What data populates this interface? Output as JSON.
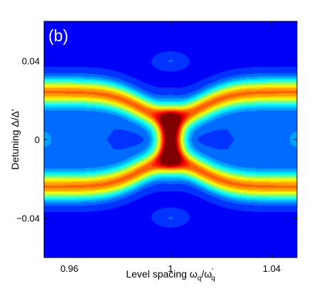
{
  "chart_data": {
    "type": "heatmap",
    "panel_label": "(b)",
    "xlabel": {
      "main": "Level spacing ω",
      "sub1": "q",
      "mid": "/ω",
      "sup": "'",
      "sub2": "q"
    },
    "ylabel": "Detuning Δ/Δ'",
    "xlim": [
      0.95,
      1.05
    ],
    "ylim": [
      -0.06,
      0.06
    ],
    "x_ticks": [
      {
        "value": 0.96,
        "label": "0.96"
      },
      {
        "value": 1.0,
        "label": "1"
      },
      {
        "value": 1.04,
        "label": "1.04"
      }
    ],
    "y_ticks": [
      {
        "value": 0.04,
        "label": "0.04"
      },
      {
        "value": 0.0,
        "label": "0"
      },
      {
        "value": -0.04,
        "label": "−0.04"
      }
    ],
    "colormap": "jet",
    "grid": false,
    "background_color": "#0a1eff",
    "features": {
      "resonance_center": [
        1.0,
        0.0
      ],
      "peak_level": 1.0,
      "branch_detuning_far": 0.024,
      "branch_detuning_at_center": 0.011,
      "outer_kink_detuning": 0.04
    }
  }
}
